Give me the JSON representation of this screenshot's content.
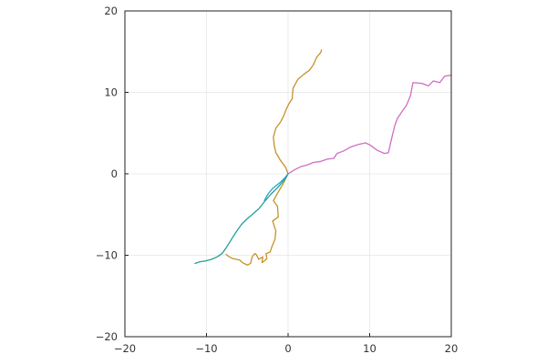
{
  "chart_data": {
    "type": "line",
    "title": "",
    "xlabel": "",
    "ylabel": "",
    "xlim": [
      -20,
      20
    ],
    "ylim": [
      -20,
      20
    ],
    "x_ticks": [
      -20,
      -10,
      0,
      10,
      20
    ],
    "y_ticks": [
      -20,
      -10,
      0,
      10,
      20
    ],
    "x_tick_labels": [
      "−20",
      "−10",
      "0",
      "10",
      "20"
    ],
    "y_tick_labels": [
      "−20",
      "−10",
      "0",
      "10",
      "20"
    ],
    "grid": true,
    "legend": "none",
    "aspect": "equal",
    "series": [
      {
        "color": "#c7912a",
        "x": [
          0,
          -0.3,
          -0.9,
          -1.5,
          -1.7,
          -1.8,
          -1.5,
          -0.9,
          -0.5,
          -0.2,
          0.1,
          0.5,
          0.6,
          1.2,
          1.9,
          2.6,
          3.1,
          3.5,
          4.0,
          4.1
        ],
        "y": [
          0,
          0.8,
          1.6,
          2.6,
          3.5,
          4.5,
          5.6,
          6.4,
          7.2,
          8.0,
          8.6,
          9.2,
          10.5,
          11.6,
          12.2,
          12.7,
          13.4,
          14.3,
          14.9,
          15.2
        ]
      },
      {
        "color": "#c7912a",
        "x": [
          0,
          -0.6,
          -1.3,
          -1.8,
          -1.3,
          -1.2,
          -1.9,
          -1.5,
          -1.6,
          -2.0,
          -2.2,
          -2.7,
          -2.6,
          -2.9,
          -3.2,
          -3.1,
          -3.6,
          -3.9,
          -4.1,
          -4.4,
          -4.6,
          -5.0,
          -5.6,
          -5.9,
          -6.3,
          -6.8,
          -7.2,
          -7.6
        ],
        "y": [
          0,
          -1.2,
          -2.4,
          -3.3,
          -4.0,
          -5.3,
          -5.8,
          -7.0,
          -8.0,
          -9.0,
          -9.6,
          -9.8,
          -10.4,
          -10.7,
          -10.9,
          -10.2,
          -10.5,
          -9.9,
          -9.8,
          -10.2,
          -11.0,
          -11.2,
          -10.9,
          -10.6,
          -10.5,
          -10.4,
          -10.2,
          -9.9
        ]
      },
      {
        "color": "#d06dc2",
        "x": [
          0,
          0.8,
          1.6,
          2.4,
          3.1,
          3.9,
          4.8,
          5.6,
          6.0,
          6.8,
          7.7,
          8.6,
          9.5,
          10.1,
          10.9,
          11.8,
          12.3,
          12.5,
          12.8,
          13.1,
          13.4,
          14.0,
          14.5,
          15.0,
          15.3,
          16.4,
          17.2,
          17.8,
          18.6,
          19.2,
          20.0
        ],
        "y": [
          0,
          0.5,
          0.9,
          1.1,
          1.4,
          1.5,
          1.8,
          1.9,
          2.5,
          2.8,
          3.3,
          3.6,
          3.8,
          3.5,
          2.9,
          2.5,
          2.6,
          3.5,
          4.8,
          6.0,
          6.8,
          7.7,
          8.4,
          9.6,
          11.2,
          11.1,
          10.8,
          11.4,
          11.2,
          12.0,
          12.1
        ]
      },
      {
        "color": "#22a099",
        "x": [
          0,
          -0.5,
          -1.2,
          -2.1,
          -2.8,
          -3.6,
          -4.4,
          -5.1,
          -5.7,
          -6.2,
          -6.6,
          -7.1,
          -7.6,
          -8.1,
          -8.7,
          -9.4,
          -10.1,
          -10.8,
          -11.4
        ],
        "y": [
          0,
          -0.8,
          -1.6,
          -2.5,
          -3.3,
          -4.3,
          -5.0,
          -5.6,
          -6.2,
          -6.9,
          -7.5,
          -8.3,
          -9.1,
          -9.8,
          -10.2,
          -10.5,
          -10.7,
          -10.8,
          -11.0
        ]
      },
      {
        "color": "#1aa5d0",
        "x": [
          0,
          -0.4,
          -0.9,
          -1.4,
          -1.9,
          -2.4,
          -2.7,
          -2.9
        ],
        "y": [
          0,
          -0.5,
          -1.0,
          -1.4,
          -1.8,
          -2.4,
          -2.9,
          -3.3
        ]
      }
    ]
  }
}
